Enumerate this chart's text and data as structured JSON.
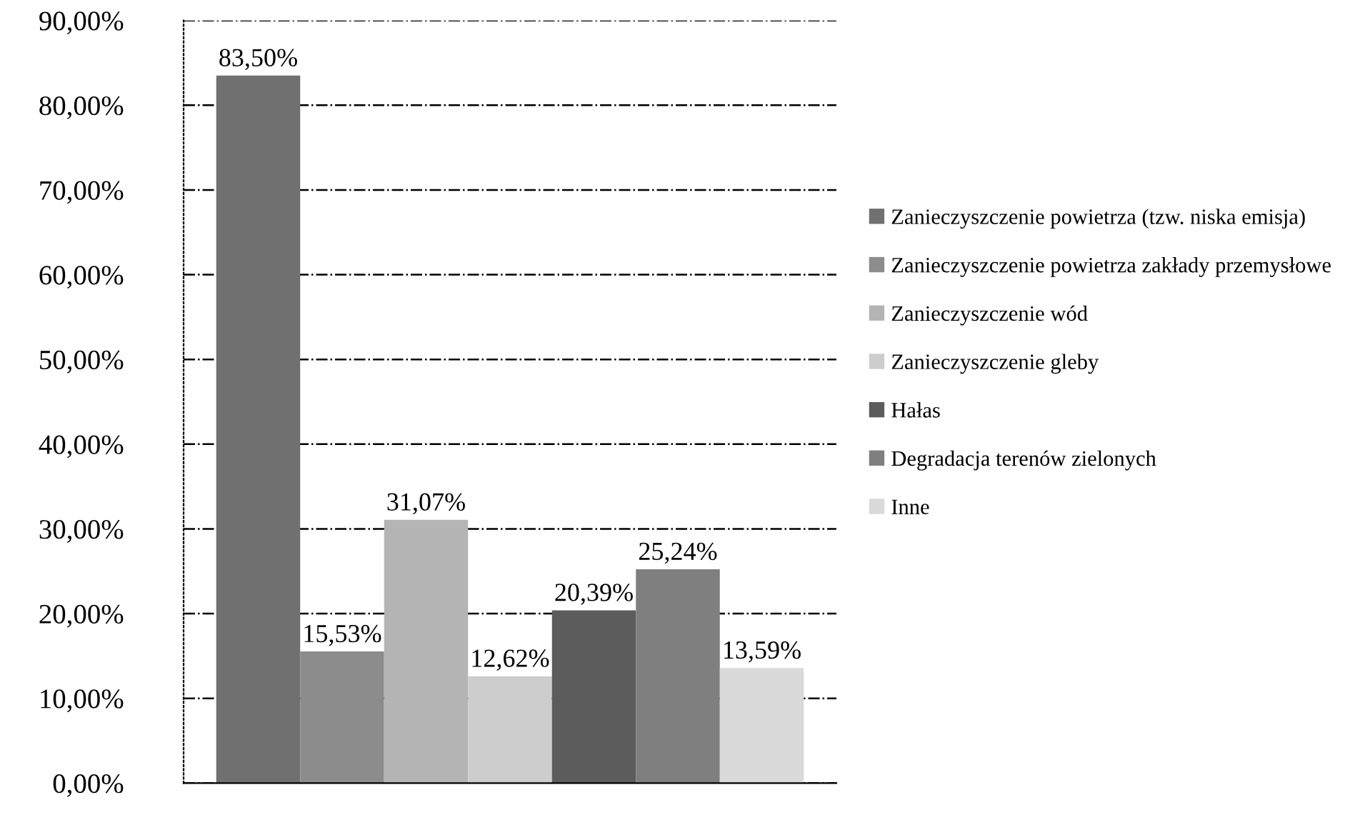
{
  "chart_data": {
    "type": "bar",
    "categories": [
      null
    ],
    "series": [
      {
        "name": "Zanieczyszczenie powietrza (tzw. niska emisja)",
        "color": "#707070",
        "values": [
          83.5
        ],
        "value_labels": [
          "83,50%"
        ]
      },
      {
        "name": "Zanieczyszczenie powietrza zakłady przemysłowe",
        "color": "#8c8c8c",
        "values": [
          15.53
        ],
        "value_labels": [
          "15,53%"
        ]
      },
      {
        "name": "Zanieczyszczenie wód",
        "color": "#b4b4b4",
        "values": [
          31.07
        ],
        "value_labels": [
          "31,07%"
        ]
      },
      {
        "name": "Zanieczyszczenie gleby",
        "color": "#cdcdcd",
        "values": [
          12.62
        ],
        "value_labels": [
          "12,62%"
        ]
      },
      {
        "name": "Hałas",
        "color": "#5c5c5c",
        "values": [
          20.39
        ],
        "value_labels": [
          "20,39%"
        ]
      },
      {
        "name": "Degradacja terenów zielonych",
        "color": "#7f7f7f",
        "values": [
          25.24
        ],
        "value_labels": [
          "25,24%"
        ]
      },
      {
        "name": "Inne",
        "color": "#dadada",
        "values": [
          13.59
        ],
        "value_labels": [
          "13,59%"
        ]
      }
    ],
    "ylim": [
      0,
      90
    ],
    "yticks": [
      {
        "value": 0,
        "label": "0,00%"
      },
      {
        "value": 10,
        "label": "10,00%"
      },
      {
        "value": 20,
        "label": "20,00%"
      },
      {
        "value": 30,
        "label": "30,00%"
      },
      {
        "value": 40,
        "label": "40,00%"
      },
      {
        "value": 50,
        "label": "50,00%"
      },
      {
        "value": 60,
        "label": "60,00%"
      },
      {
        "value": 70,
        "label": "70,00%"
      },
      {
        "value": 80,
        "label": "80,00%"
      },
      {
        "value": 90,
        "label": "90,00%"
      }
    ],
    "grid": "y",
    "legend": "right",
    "line_style": "dashed"
  }
}
